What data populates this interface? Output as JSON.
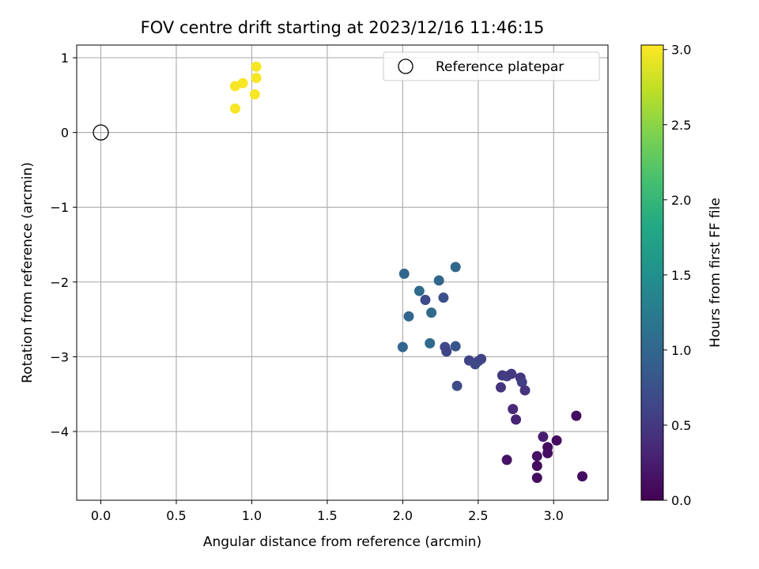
{
  "chart_data": {
    "type": "scatter",
    "title": "FOV centre drift starting at 2023/12/16 11:46:15",
    "xlabel": "Angular distance from reference (arcmin)",
    "ylabel": "Rotation from reference (arcmin)",
    "xlim": [
      -0.16,
      3.36
    ],
    "ylim": [
      -4.92,
      1.17
    ],
    "xticks": [
      0.0,
      0.5,
      1.0,
      1.5,
      2.0,
      2.5,
      3.0
    ],
    "xtick_labels": [
      "0.0",
      "0.5",
      "1.0",
      "1.5",
      "2.0",
      "2.5",
      "3.0"
    ],
    "yticks": [
      1,
      0,
      -1,
      -2,
      -3,
      -4
    ],
    "ytick_labels": [
      "1",
      "0",
      "−1",
      "−2",
      "−3",
      "−4"
    ],
    "grid": true,
    "colormap": "viridis",
    "colorbar": {
      "label": "Hours from first FF file",
      "range": [
        0.0,
        3.03
      ],
      "ticks": [
        0.0,
        0.5,
        1.0,
        1.5,
        2.0,
        2.5,
        3.0
      ],
      "tick_labels": [
        "0.0",
        "0.5",
        "1.0",
        "1.5",
        "2.0",
        "2.5",
        "3.0"
      ]
    },
    "legend": {
      "placement": "top-right",
      "label": "Reference platepar"
    },
    "reference_point": {
      "x": 0.0,
      "y": 0.0
    },
    "points": [
      {
        "x": 1.03,
        "y": 0.88,
        "c": 3.0
      },
      {
        "x": 0.94,
        "y": 0.66,
        "c": 3.0
      },
      {
        "x": 1.03,
        "y": 0.73,
        "c": 3.0
      },
      {
        "x": 0.89,
        "y": 0.62,
        "c": 3.0
      },
      {
        "x": 1.02,
        "y": 0.51,
        "c": 3.0
      },
      {
        "x": 0.89,
        "y": 0.32,
        "c": 3.0
      },
      {
        "x": 2.01,
        "y": -1.89,
        "c": 1.0
      },
      {
        "x": 2.35,
        "y": -1.8,
        "c": 1.0
      },
      {
        "x": 2.24,
        "y": -1.98,
        "c": 1.0
      },
      {
        "x": 2.11,
        "y": -2.12,
        "c": 1.05
      },
      {
        "x": 2.15,
        "y": -2.24,
        "c": 0.7
      },
      {
        "x": 2.27,
        "y": -2.21,
        "c": 0.75
      },
      {
        "x": 2.19,
        "y": -2.41,
        "c": 1.05
      },
      {
        "x": 2.04,
        "y": -2.46,
        "c": 1.0
      },
      {
        "x": 2.0,
        "y": -2.87,
        "c": 1.0
      },
      {
        "x": 2.18,
        "y": -2.82,
        "c": 1.05
      },
      {
        "x": 2.28,
        "y": -2.87,
        "c": 0.65
      },
      {
        "x": 2.29,
        "y": -2.93,
        "c": 0.6
      },
      {
        "x": 2.35,
        "y": -2.86,
        "c": 0.8
      },
      {
        "x": 2.44,
        "y": -3.05,
        "c": 0.6
      },
      {
        "x": 2.48,
        "y": -3.1,
        "c": 0.65
      },
      {
        "x": 2.5,
        "y": -3.06,
        "c": 0.7
      },
      {
        "x": 2.52,
        "y": -3.03,
        "c": 0.6
      },
      {
        "x": 2.36,
        "y": -3.39,
        "c": 0.7
      },
      {
        "x": 2.66,
        "y": -3.25,
        "c": 0.5
      },
      {
        "x": 2.69,
        "y": -3.26,
        "c": 0.55
      },
      {
        "x": 2.72,
        "y": -3.23,
        "c": 0.5
      },
      {
        "x": 2.78,
        "y": -3.28,
        "c": 0.45
      },
      {
        "x": 2.79,
        "y": -3.34,
        "c": 0.55
      },
      {
        "x": 2.65,
        "y": -3.41,
        "c": 0.45
      },
      {
        "x": 2.81,
        "y": -3.45,
        "c": 0.45
      },
      {
        "x": 2.73,
        "y": -3.7,
        "c": 0.35
      },
      {
        "x": 2.75,
        "y": -3.84,
        "c": 0.3
      },
      {
        "x": 3.15,
        "y": -3.79,
        "c": 0.1
      },
      {
        "x": 2.93,
        "y": -4.07,
        "c": 0.25
      },
      {
        "x": 3.02,
        "y": -4.12,
        "c": 0.1
      },
      {
        "x": 2.96,
        "y": -4.21,
        "c": 0.1
      },
      {
        "x": 2.96,
        "y": -4.29,
        "c": 0.1
      },
      {
        "x": 2.89,
        "y": -4.33,
        "c": 0.15
      },
      {
        "x": 2.69,
        "y": -4.38,
        "c": 0.15
      },
      {
        "x": 2.89,
        "y": -4.46,
        "c": 0.1
      },
      {
        "x": 3.19,
        "y": -4.6,
        "c": 0.1
      },
      {
        "x": 2.89,
        "y": -4.62,
        "c": 0.1
      }
    ]
  }
}
